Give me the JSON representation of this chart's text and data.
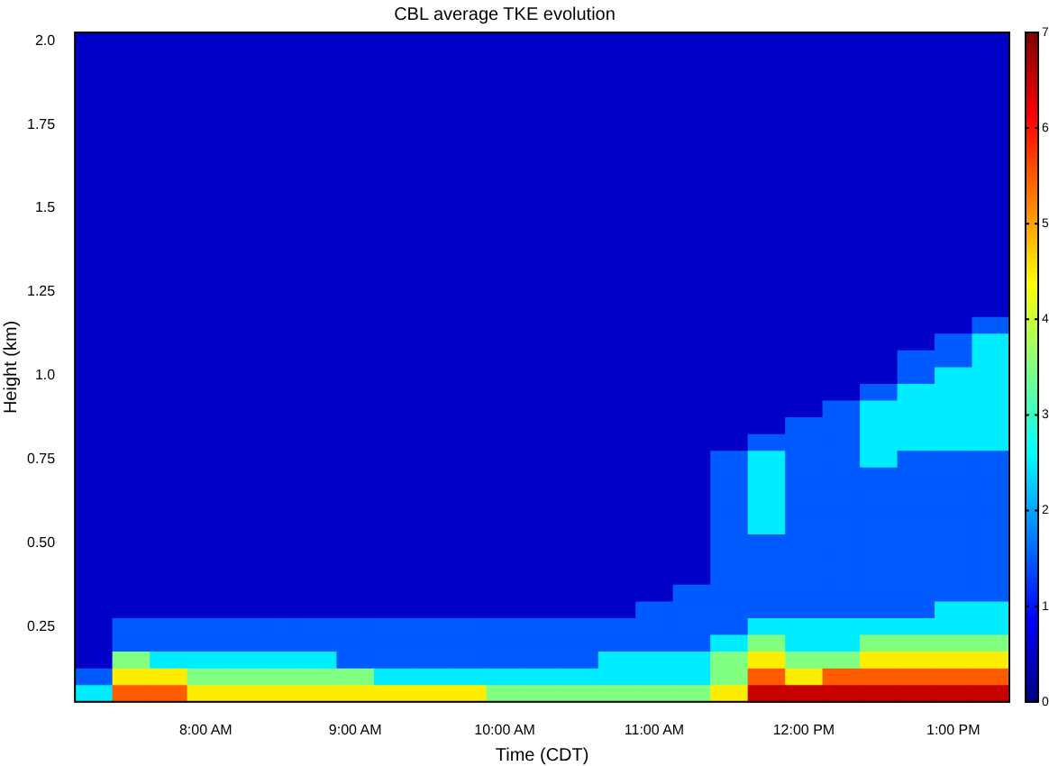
{
  "chart_data": {
    "type": "heatmap",
    "title": "CBL average TKE evolution",
    "xlabel": "Time (CDT)",
    "ylabel": "Height (km)",
    "categories": [
      null,
      null,
      null,
      "8:00 AM",
      null,
      null,
      null,
      "9:00 AM",
      null,
      null,
      null,
      "10:00 AM",
      null,
      null,
      null,
      "11:00 AM",
      null,
      null,
      null,
      "12:00 PM",
      null,
      null,
      null,
      "1:00 PM",
      null
    ],
    "y_categories": [
      "2.0",
      null,
      null,
      null,
      null,
      "1.75",
      null,
      null,
      null,
      null,
      "1.5",
      null,
      null,
      null,
      null,
      "1.25",
      null,
      null,
      null,
      null,
      "1.0",
      null,
      null,
      null,
      null,
      "0.75",
      null,
      null,
      null,
      null,
      "0.50",
      null,
      null,
      null,
      null,
      "0.25",
      null,
      null,
      null,
      null
    ],
    "clim": [
      0,
      7
    ],
    "cticks": [
      0,
      1,
      2,
      3,
      4,
      5,
      6,
      7
    ],
    "cells": [
      [
        0.5,
        0.5,
        0.5,
        0.5,
        0.5,
        0.5,
        0.5,
        0.5,
        0.5,
        0.5,
        0.5,
        0.5,
        0.5,
        0.5,
        0.5,
        0.5,
        0.5,
        0.5,
        0.5,
        0.5,
        0.5,
        0.5,
        0.5,
        0.5,
        0.5
      ],
      [
        0.5,
        0.5,
        0.5,
        0.5,
        0.5,
        0.5,
        0.5,
        0.5,
        0.5,
        0.5,
        0.5,
        0.5,
        0.5,
        0.5,
        0.5,
        0.5,
        0.5,
        0.5,
        0.5,
        0.5,
        0.5,
        0.5,
        0.5,
        0.5,
        0.5
      ],
      [
        0.5,
        0.5,
        0.5,
        0.5,
        0.5,
        0.5,
        0.5,
        0.5,
        0.5,
        0.5,
        0.5,
        0.5,
        0.5,
        0.5,
        0.5,
        0.5,
        0.5,
        0.5,
        0.5,
        0.5,
        0.5,
        0.5,
        0.5,
        0.5,
        0.5
      ],
      [
        0.5,
        0.5,
        0.5,
        0.5,
        0.5,
        0.5,
        0.5,
        0.5,
        0.5,
        0.5,
        0.5,
        0.5,
        0.5,
        0.5,
        0.5,
        0.5,
        0.5,
        0.5,
        0.5,
        0.5,
        0.5,
        0.5,
        0.5,
        0.5,
        0.5
      ],
      [
        0.5,
        0.5,
        0.5,
        0.5,
        0.5,
        0.5,
        0.5,
        0.5,
        0.5,
        0.5,
        0.5,
        0.5,
        0.5,
        0.5,
        0.5,
        0.5,
        0.5,
        0.5,
        0.5,
        0.5,
        0.5,
        0.5,
        0.5,
        0.5,
        0.5
      ],
      [
        0.5,
        0.5,
        0.5,
        0.5,
        0.5,
        0.5,
        0.5,
        0.5,
        0.5,
        0.5,
        0.5,
        0.5,
        0.5,
        0.5,
        0.5,
        0.5,
        0.5,
        0.5,
        0.5,
        0.5,
        0.5,
        0.5,
        0.5,
        0.5,
        0.5
      ],
      [
        0.5,
        0.5,
        0.5,
        0.5,
        0.5,
        0.5,
        0.5,
        0.5,
        0.5,
        0.5,
        0.5,
        0.5,
        0.5,
        0.5,
        0.5,
        0.5,
        0.5,
        0.5,
        0.5,
        0.5,
        0.5,
        0.5,
        0.5,
        0.5,
        0.5
      ],
      [
        0.5,
        0.5,
        0.5,
        0.5,
        0.5,
        0.5,
        0.5,
        0.5,
        0.5,
        0.5,
        0.5,
        0.5,
        0.5,
        0.5,
        0.5,
        0.5,
        0.5,
        0.5,
        0.5,
        0.5,
        0.5,
        0.5,
        0.5,
        0.5,
        0.5
      ],
      [
        0.5,
        0.5,
        0.5,
        0.5,
        0.5,
        0.5,
        0.5,
        0.5,
        0.5,
        0.5,
        0.5,
        0.5,
        0.5,
        0.5,
        0.5,
        0.5,
        0.5,
        0.5,
        0.5,
        0.5,
        0.5,
        0.5,
        0.5,
        0.5,
        0.5
      ],
      [
        0.5,
        0.5,
        0.5,
        0.5,
        0.5,
        0.5,
        0.5,
        0.5,
        0.5,
        0.5,
        0.5,
        0.5,
        0.5,
        0.5,
        0.5,
        0.5,
        0.5,
        0.5,
        0.5,
        0.5,
        0.5,
        0.5,
        0.5,
        0.5,
        0.5
      ],
      [
        0.5,
        0.5,
        0.5,
        0.5,
        0.5,
        0.5,
        0.5,
        0.5,
        0.5,
        0.5,
        0.5,
        0.5,
        0.5,
        0.5,
        0.5,
        0.5,
        0.5,
        0.5,
        0.5,
        0.5,
        0.5,
        0.5,
        0.5,
        0.5,
        0.5
      ],
      [
        0.5,
        0.5,
        0.5,
        0.5,
        0.5,
        0.5,
        0.5,
        0.5,
        0.5,
        0.5,
        0.5,
        0.5,
        0.5,
        0.5,
        0.5,
        0.5,
        0.5,
        0.5,
        0.5,
        0.5,
        0.5,
        0.5,
        0.5,
        0.5,
        0.5
      ],
      [
        0.5,
        0.5,
        0.5,
        0.5,
        0.5,
        0.5,
        0.5,
        0.5,
        0.5,
        0.5,
        0.5,
        0.5,
        0.5,
        0.5,
        0.5,
        0.5,
        0.5,
        0.5,
        0.5,
        0.5,
        0.5,
        0.5,
        0.5,
        0.5,
        0.5
      ],
      [
        0.5,
        0.5,
        0.5,
        0.5,
        0.5,
        0.5,
        0.5,
        0.5,
        0.5,
        0.5,
        0.5,
        0.5,
        0.5,
        0.5,
        0.5,
        0.5,
        0.5,
        0.5,
        0.5,
        0.5,
        0.5,
        0.5,
        0.5,
        0.5,
        0.5
      ],
      [
        0.5,
        0.5,
        0.5,
        0.5,
        0.5,
        0.5,
        0.5,
        0.5,
        0.5,
        0.5,
        0.5,
        0.5,
        0.5,
        0.5,
        0.5,
        0.5,
        0.5,
        0.5,
        0.5,
        0.5,
        0.5,
        0.5,
        0.5,
        0.5,
        0.5
      ],
      [
        0.5,
        0.5,
        0.5,
        0.5,
        0.5,
        0.5,
        0.5,
        0.5,
        0.5,
        0.5,
        0.5,
        0.5,
        0.5,
        0.5,
        0.5,
        0.5,
        0.5,
        0.5,
        0.5,
        0.5,
        0.5,
        0.5,
        0.5,
        0.5,
        0.5
      ],
      [
        0.5,
        0.5,
        0.5,
        0.5,
        0.5,
        0.5,
        0.5,
        0.5,
        0.5,
        0.5,
        0.5,
        0.5,
        0.5,
        0.5,
        0.5,
        0.5,
        0.5,
        0.5,
        0.5,
        0.5,
        0.5,
        0.5,
        0.5,
        0.5,
        0.5
      ],
      [
        0.5,
        0.5,
        0.5,
        0.5,
        0.5,
        0.5,
        0.5,
        0.5,
        0.5,
        0.5,
        0.5,
        0.5,
        0.5,
        0.5,
        0.5,
        0.5,
        0.5,
        0.5,
        0.5,
        0.5,
        0.5,
        0.5,
        0.5,
        0.5,
        1.5
      ],
      [
        0.5,
        0.5,
        0.5,
        0.5,
        0.5,
        0.5,
        0.5,
        0.5,
        0.5,
        0.5,
        0.5,
        0.5,
        0.5,
        0.5,
        0.5,
        0.5,
        0.5,
        0.5,
        0.5,
        0.5,
        0.5,
        0.5,
        0.5,
        1.5,
        2.5
      ],
      [
        0.5,
        0.5,
        0.5,
        0.5,
        0.5,
        0.5,
        0.5,
        0.5,
        0.5,
        0.5,
        0.5,
        0.5,
        0.5,
        0.5,
        0.5,
        0.5,
        0.5,
        0.5,
        0.5,
        0.5,
        0.5,
        0.5,
        1.5,
        1.5,
        2.5
      ],
      [
        0.5,
        0.5,
        0.5,
        0.5,
        0.5,
        0.5,
        0.5,
        0.5,
        0.5,
        0.5,
        0.5,
        0.5,
        0.5,
        0.5,
        0.5,
        0.5,
        0.5,
        0.5,
        0.5,
        0.5,
        0.5,
        0.5,
        1.5,
        2.5,
        2.5
      ],
      [
        0.5,
        0.5,
        0.5,
        0.5,
        0.5,
        0.5,
        0.5,
        0.5,
        0.5,
        0.5,
        0.5,
        0.5,
        0.5,
        0.5,
        0.5,
        0.5,
        0.5,
        0.5,
        0.5,
        0.5,
        0.5,
        1.5,
        2.5,
        2.5,
        2.5
      ],
      [
        0.5,
        0.5,
        0.5,
        0.5,
        0.5,
        0.5,
        0.5,
        0.5,
        0.5,
        0.5,
        0.5,
        0.5,
        0.5,
        0.5,
        0.5,
        0.5,
        0.5,
        0.5,
        0.5,
        0.5,
        1.5,
        2.5,
        2.5,
        2.5,
        2.5
      ],
      [
        0.5,
        0.5,
        0.5,
        0.5,
        0.5,
        0.5,
        0.5,
        0.5,
        0.5,
        0.5,
        0.5,
        0.5,
        0.5,
        0.5,
        0.5,
        0.5,
        0.5,
        0.5,
        0.5,
        1.5,
        1.5,
        2.5,
        2.5,
        2.5,
        2.5
      ],
      [
        0.5,
        0.5,
        0.5,
        0.5,
        0.5,
        0.5,
        0.5,
        0.5,
        0.5,
        0.5,
        0.5,
        0.5,
        0.5,
        0.5,
        0.5,
        0.5,
        0.5,
        0.5,
        1.5,
        1.5,
        1.5,
        2.5,
        2.5,
        2.5,
        2.5
      ],
      [
        0.5,
        0.5,
        0.5,
        0.5,
        0.5,
        0.5,
        0.5,
        0.5,
        0.5,
        0.5,
        0.5,
        0.5,
        0.5,
        0.5,
        0.5,
        0.5,
        0.5,
        1.5,
        2.5,
        1.5,
        1.5,
        2.5,
        1.5,
        1.5,
        1.5
      ],
      [
        0.5,
        0.5,
        0.5,
        0.5,
        0.5,
        0.5,
        0.5,
        0.5,
        0.5,
        0.5,
        0.5,
        0.5,
        0.5,
        0.5,
        0.5,
        0.5,
        0.5,
        1.5,
        2.5,
        1.5,
        1.5,
        1.5,
        1.5,
        1.5,
        1.5
      ],
      [
        0.5,
        0.5,
        0.5,
        0.5,
        0.5,
        0.5,
        0.5,
        0.5,
        0.5,
        0.5,
        0.5,
        0.5,
        0.5,
        0.5,
        0.5,
        0.5,
        0.5,
        1.5,
        2.5,
        1.5,
        1.5,
        1.5,
        1.5,
        1.5,
        1.5
      ],
      [
        0.5,
        0.5,
        0.5,
        0.5,
        0.5,
        0.5,
        0.5,
        0.5,
        0.5,
        0.5,
        0.5,
        0.5,
        0.5,
        0.5,
        0.5,
        0.5,
        0.5,
        1.5,
        2.5,
        1.5,
        1.5,
        1.5,
        1.5,
        1.5,
        1.5
      ],
      [
        0.5,
        0.5,
        0.5,
        0.5,
        0.5,
        0.5,
        0.5,
        0.5,
        0.5,
        0.5,
        0.5,
        0.5,
        0.5,
        0.5,
        0.5,
        0.5,
        0.5,
        1.5,
        2.5,
        1.5,
        1.5,
        1.5,
        1.5,
        1.5,
        1.5
      ],
      [
        0.5,
        0.5,
        0.5,
        0.5,
        0.5,
        0.5,
        0.5,
        0.5,
        0.5,
        0.5,
        0.5,
        0.5,
        0.5,
        0.5,
        0.5,
        0.5,
        0.5,
        1.5,
        1.5,
        1.5,
        1.5,
        1.5,
        1.5,
        1.5,
        1.5
      ],
      [
        0.5,
        0.5,
        0.5,
        0.5,
        0.5,
        0.5,
        0.5,
        0.5,
        0.5,
        0.5,
        0.5,
        0.5,
        0.5,
        0.5,
        0.5,
        0.5,
        0.5,
        1.5,
        1.5,
        1.5,
        1.5,
        1.5,
        1.5,
        1.5,
        1.5
      ],
      [
        0.5,
        0.5,
        0.5,
        0.5,
        0.5,
        0.5,
        0.5,
        0.5,
        0.5,
        0.5,
        0.5,
        0.5,
        0.5,
        0.5,
        0.5,
        0.5,
        0.5,
        1.5,
        1.5,
        1.5,
        1.5,
        1.5,
        1.5,
        1.5,
        1.5
      ],
      [
        0.5,
        0.5,
        0.5,
        0.5,
        0.5,
        0.5,
        0.5,
        0.5,
        0.5,
        0.5,
        0.5,
        0.5,
        0.5,
        0.5,
        0.5,
        0.5,
        1.5,
        1.5,
        1.5,
        1.5,
        1.5,
        1.5,
        1.5,
        1.5,
        1.5
      ],
      [
        0.5,
        0.5,
        0.5,
        0.5,
        0.5,
        0.5,
        0.5,
        0.5,
        0.5,
        0.5,
        0.5,
        0.5,
        0.5,
        0.5,
        0.5,
        1.5,
        1.5,
        1.5,
        1.5,
        1.5,
        1.5,
        1.5,
        1.5,
        2.5,
        2.5
      ],
      [
        0.5,
        1.5,
        1.5,
        1.5,
        1.5,
        1.5,
        1.5,
        1.5,
        1.5,
        1.5,
        1.5,
        1.5,
        1.5,
        1.5,
        1.5,
        1.5,
        1.5,
        1.5,
        2.5,
        2.5,
        2.5,
        2.5,
        2.5,
        2.5,
        2.5
      ],
      [
        0.5,
        1.5,
        1.5,
        1.5,
        1.5,
        1.5,
        1.5,
        1.5,
        1.5,
        1.5,
        1.5,
        1.5,
        1.5,
        1.5,
        1.5,
        1.5,
        1.5,
        2.5,
        3.5,
        2.5,
        2.5,
        3.5,
        3.5,
        3.5,
        3.5
      ],
      [
        0.5,
        3.5,
        2.5,
        2.5,
        2.5,
        2.5,
        2.5,
        1.5,
        1.5,
        1.5,
        1.5,
        1.5,
        1.5,
        1.5,
        2.5,
        2.5,
        2.5,
        3.5,
        4.5,
        3.5,
        3.5,
        4.5,
        4.5,
        4.5,
        4.5
      ],
      [
        1.5,
        4.5,
        4.5,
        3.5,
        3.5,
        3.5,
        3.5,
        3.5,
        2.5,
        2.5,
        2.5,
        2.5,
        2.5,
        2.5,
        2.5,
        2.5,
        2.5,
        3.5,
        5.5,
        4.5,
        5.5,
        5.5,
        5.5,
        5.5,
        5.5
      ],
      [
        2.5,
        5.5,
        5.5,
        4.5,
        4.5,
        4.5,
        4.5,
        4.5,
        4.5,
        4.5,
        4.5,
        3.5,
        3.5,
        3.5,
        3.5,
        3.5,
        3.5,
        4.5,
        6.5,
        6.5,
        6.5,
        6.5,
        6.5,
        6.5,
        6.5
      ]
    ]
  }
}
